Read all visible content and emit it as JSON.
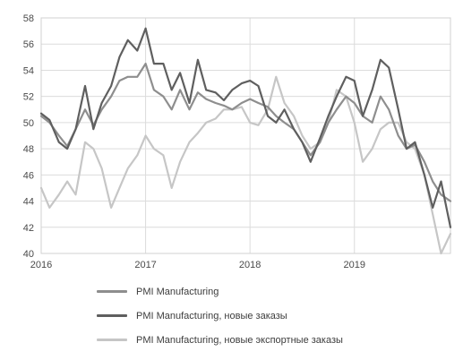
{
  "chart_data": {
    "type": "line",
    "title": "",
    "xlabel": "",
    "ylabel": "",
    "ylim": [
      40,
      58
    ],
    "yticks": [
      40,
      42,
      44,
      46,
      48,
      50,
      52,
      54,
      56,
      58
    ],
    "xlim": [
      2016.0,
      2019.92
    ],
    "xticks": [
      {
        "value": 2016,
        "label": "2016"
      },
      {
        "value": 2017,
        "label": "2017"
      },
      {
        "value": 2018,
        "label": "2018"
      },
      {
        "value": 2019,
        "label": "2019"
      }
    ],
    "grid": true,
    "legend_position": "bottom",
    "series": [
      {
        "name": "PMI Manufacturing",
        "color": "#8e8e8e",
        "x": [
          2016.0,
          2016.08,
          2016.17,
          2016.25,
          2016.33,
          2016.42,
          2016.5,
          2016.58,
          2016.67,
          2016.75,
          2016.83,
          2016.92,
          2017.0,
          2017.08,
          2017.17,
          2017.25,
          2017.33,
          2017.42,
          2017.5,
          2017.58,
          2017.67,
          2017.75,
          2017.83,
          2017.92,
          2018.0,
          2018.08,
          2018.17,
          2018.25,
          2018.33,
          2018.42,
          2018.5,
          2018.58,
          2018.67,
          2018.75,
          2018.83,
          2018.92,
          2019.0,
          2019.08,
          2019.17,
          2019.25,
          2019.33,
          2019.42,
          2019.5,
          2019.58,
          2019.67,
          2019.75,
          2019.83,
          2019.92
        ],
        "values": [
          50.5,
          50.0,
          49.0,
          48.2,
          49.5,
          51.0,
          49.8,
          51.0,
          52.0,
          53.2,
          53.5,
          53.5,
          54.5,
          52.5,
          52.0,
          51.0,
          52.5,
          51.0,
          52.3,
          51.8,
          51.5,
          51.3,
          51.0,
          51.5,
          51.8,
          51.5,
          51.2,
          50.5,
          50.0,
          49.5,
          48.5,
          47.5,
          48.5,
          50.0,
          51.0,
          52.0,
          51.5,
          50.5,
          50.0,
          52.0,
          51.0,
          49.0,
          48.0,
          48.3,
          47.0,
          45.5,
          44.5,
          44.0
        ]
      },
      {
        "name": "PMI Manufacturing, новые заказы",
        "color": "#5f5f5f",
        "x": [
          2016.0,
          2016.08,
          2016.17,
          2016.25,
          2016.33,
          2016.42,
          2016.5,
          2016.58,
          2016.67,
          2016.75,
          2016.83,
          2016.92,
          2017.0,
          2017.08,
          2017.17,
          2017.25,
          2017.33,
          2017.42,
          2017.5,
          2017.58,
          2017.67,
          2017.75,
          2017.83,
          2017.92,
          2018.0,
          2018.08,
          2018.17,
          2018.25,
          2018.33,
          2018.42,
          2018.5,
          2018.58,
          2018.67,
          2018.75,
          2018.83,
          2018.92,
          2019.0,
          2019.08,
          2019.17,
          2019.25,
          2019.33,
          2019.42,
          2019.5,
          2019.58,
          2019.67,
          2019.75,
          2019.83,
          2019.92
        ],
        "values": [
          50.7,
          50.2,
          48.5,
          48.0,
          49.5,
          52.8,
          49.5,
          51.5,
          52.8,
          55.0,
          56.3,
          55.5,
          57.2,
          54.5,
          54.5,
          52.5,
          53.8,
          51.5,
          54.8,
          52.5,
          52.3,
          51.7,
          52.5,
          53.0,
          53.2,
          52.8,
          50.5,
          50.0,
          51.0,
          49.5,
          48.5,
          47.0,
          48.8,
          50.5,
          52.0,
          53.5,
          53.2,
          50.5,
          52.5,
          54.8,
          54.2,
          51.0,
          48.0,
          48.5,
          46.0,
          43.5,
          45.5,
          42.0
        ]
      },
      {
        "name": "PMI Manufacturing, новые экспортные заказы",
        "color": "#c6c6c6",
        "x": [
          2016.0,
          2016.08,
          2016.17,
          2016.25,
          2016.33,
          2016.42,
          2016.5,
          2016.58,
          2016.67,
          2016.75,
          2016.83,
          2016.92,
          2017.0,
          2017.08,
          2017.17,
          2017.25,
          2017.33,
          2017.42,
          2017.5,
          2017.58,
          2017.67,
          2017.75,
          2017.83,
          2017.92,
          2018.0,
          2018.08,
          2018.17,
          2018.25,
          2018.33,
          2018.42,
          2018.5,
          2018.58,
          2018.67,
          2018.75,
          2018.83,
          2018.92,
          2019.0,
          2019.08,
          2019.17,
          2019.25,
          2019.33,
          2019.42,
          2019.5,
          2019.58,
          2019.67,
          2019.75,
          2019.83,
          2019.92
        ],
        "values": [
          45.0,
          43.5,
          44.5,
          45.5,
          44.5,
          48.5,
          48.0,
          46.5,
          43.5,
          45.0,
          46.5,
          47.5,
          49.0,
          48.0,
          47.5,
          45.0,
          47.0,
          48.5,
          49.2,
          50.0,
          50.3,
          51.0,
          51.0,
          51.2,
          50.0,
          49.8,
          51.0,
          53.5,
          51.5,
          50.5,
          49.0,
          48.0,
          48.5,
          50.0,
          52.5,
          52.0,
          50.0,
          47.0,
          48.0,
          49.5,
          50.0,
          50.0,
          48.5,
          48.0,
          46.0,
          43.0,
          40.0,
          41.5
        ]
      }
    ]
  }
}
